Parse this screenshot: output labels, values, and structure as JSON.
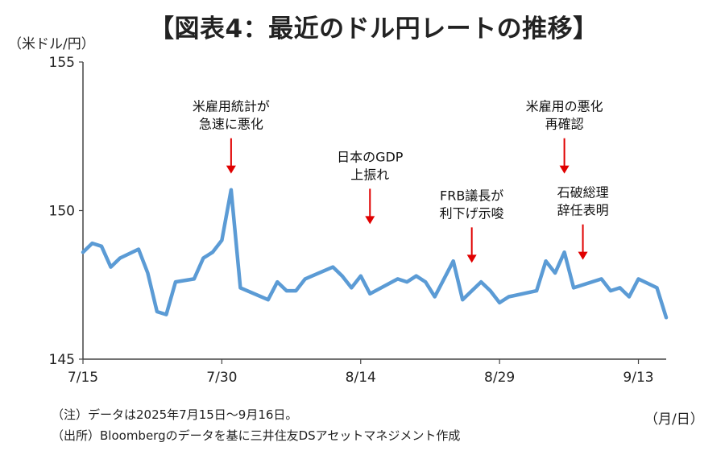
{
  "title": "【図表4：最近のドル円レートの推移】",
  "y_unit_label": "（米ドル/円）",
  "x_unit_label": "（月/日）",
  "notes": [
    "（注）データは2025年7月15日～9月16日。",
    "（出所）Bloombergのデータを基に三井住友DSアセットマネジメント作成"
  ],
  "colors": {
    "line": "#5b9bd5",
    "arrow": "#e00000",
    "axis": "#444444"
  },
  "chart_data": {
    "type": "line",
    "x_start": "2025-07-15",
    "x_end": "2025-09-16",
    "ylim": [
      145,
      155
    ],
    "yticks": [
      145,
      150,
      155
    ],
    "xticks": [
      {
        "date": "2025-07-15",
        "label": "7/15"
      },
      {
        "date": "2025-07-30",
        "label": "7/30"
      },
      {
        "date": "2025-08-14",
        "label": "8/14"
      },
      {
        "date": "2025-08-29",
        "label": "8/29"
      },
      {
        "date": "2025-09-13",
        "label": "9/13"
      }
    ],
    "grid": false,
    "series": [
      {
        "points": [
          [
            "2025-07-15",
            148.6
          ],
          [
            "2025-07-16",
            148.9
          ],
          [
            "2025-07-17",
            148.8
          ],
          [
            "2025-07-18",
            148.1
          ],
          [
            "2025-07-19",
            148.4
          ],
          [
            "2025-07-21",
            148.7
          ],
          [
            "2025-07-22",
            147.9
          ],
          [
            "2025-07-23",
            146.6
          ],
          [
            "2025-07-24",
            146.5
          ],
          [
            "2025-07-25",
            147.6
          ],
          [
            "2025-07-27",
            147.7
          ],
          [
            "2025-07-28",
            148.4
          ],
          [
            "2025-07-29",
            148.6
          ],
          [
            "2025-07-30",
            149.0
          ],
          [
            "2025-07-31",
            150.7
          ],
          [
            "2025-08-01",
            147.4
          ],
          [
            "2025-08-04",
            147.0
          ],
          [
            "2025-08-05",
            147.6
          ],
          [
            "2025-08-06",
            147.3
          ],
          [
            "2025-08-07",
            147.3
          ],
          [
            "2025-08-08",
            147.7
          ],
          [
            "2025-08-11",
            148.1
          ],
          [
            "2025-08-12",
            147.8
          ],
          [
            "2025-08-13",
            147.4
          ],
          [
            "2025-08-14",
            147.8
          ],
          [
            "2025-08-15",
            147.2
          ],
          [
            "2025-08-18",
            147.7
          ],
          [
            "2025-08-19",
            147.6
          ],
          [
            "2025-08-20",
            147.8
          ],
          [
            "2025-08-21",
            147.6
          ],
          [
            "2025-08-22",
            147.1
          ],
          [
            "2025-08-24",
            148.3
          ],
          [
            "2025-08-25",
            147.0
          ],
          [
            "2025-08-26",
            147.3
          ],
          [
            "2025-08-27",
            147.6
          ],
          [
            "2025-08-28",
            147.3
          ],
          [
            "2025-08-29",
            146.9
          ],
          [
            "2025-08-30",
            147.1
          ],
          [
            "2025-09-02",
            147.3
          ],
          [
            "2025-09-03",
            148.3
          ],
          [
            "2025-09-04",
            147.9
          ],
          [
            "2025-09-05",
            148.6
          ],
          [
            "2025-09-06",
            147.4
          ],
          [
            "2025-09-09",
            147.7
          ],
          [
            "2025-09-10",
            147.3
          ],
          [
            "2025-09-11",
            147.4
          ],
          [
            "2025-09-12",
            147.1
          ],
          [
            "2025-09-13",
            147.7
          ],
          [
            "2025-09-15",
            147.4
          ],
          [
            "2025-09-16",
            146.4
          ]
        ]
      }
    ],
    "annotations": [
      {
        "lines": [
          "米雇用統計が",
          "急速に悪化"
        ],
        "date": "2025-07-31",
        "value": 150.7
      },
      {
        "lines": [
          "日本のGDP",
          "上振れ"
        ],
        "date": "2025-08-15",
        "value": 149.0
      },
      {
        "lines": [
          "FRB議長が",
          "利下げ示唆"
        ],
        "date": "2025-08-26",
        "value": 147.7
      },
      {
        "lines": [
          "米雇用の悪化",
          "再確認"
        ],
        "date": "2025-09-05",
        "value": 150.7
      },
      {
        "lines": [
          "石破総理",
          "辞任表明"
        ],
        "date": "2025-09-07",
        "value": 147.8
      }
    ]
  }
}
